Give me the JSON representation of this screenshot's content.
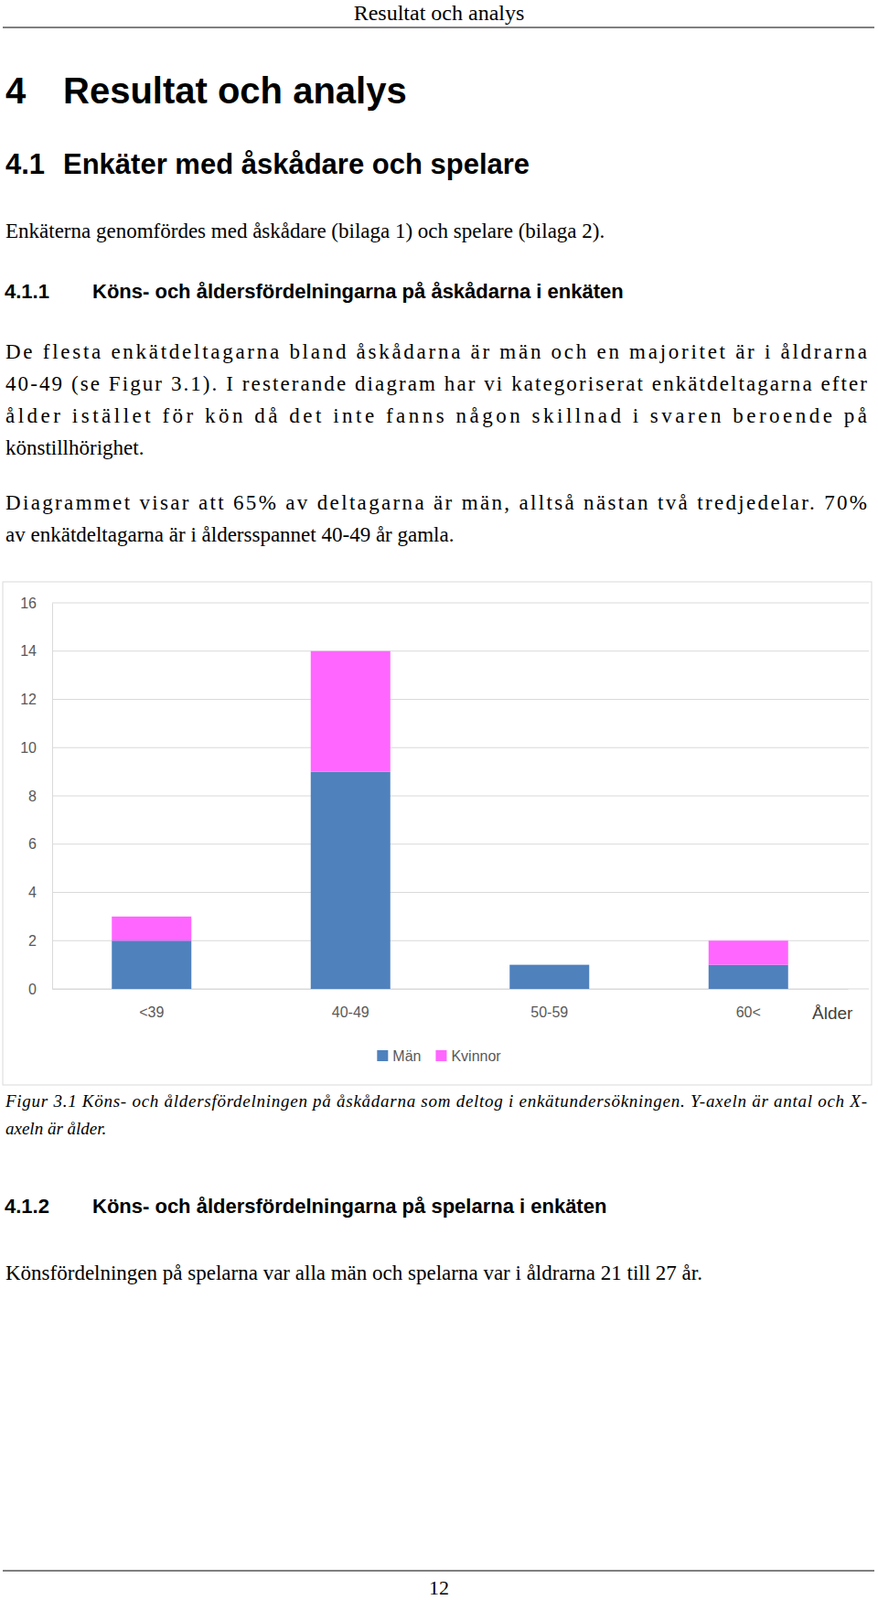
{
  "document": {
    "running_head": "Resultat och analys",
    "chapter": {
      "number": "4",
      "title": "Resultat och analys"
    },
    "section": {
      "number": "4.1",
      "title": "Enkäter med åskådare och spelare",
      "paragraph": [
        "Enkäterna genomfördes med åskådare (bilaga 1) och spelare (bilaga 2)."
      ]
    },
    "subsections": [
      {
        "number": "4.1.1",
        "title": "Köns- och åldersfördelningarna på åskådarna i enkäten",
        "paragraphs": [
          [
            "De flesta enkätdeltagarna bland åskådarna är män och en majoritet är i åldrarna",
            "40-49 (se Figur 3.1). I resterande diagram har vi kategoriserat enkätdeltagarna efter",
            "ålder istället för kön då det inte fanns någon skillnad i svaren beroende på",
            "könstillhörighet."
          ],
          [
            "Diagrammet visar att 65% av deltagarna är män, alltså nästan två tredjedelar. 70%",
            "av enkätdeltagarna är i åldersspannet 40-49 år gamla."
          ]
        ]
      },
      {
        "number": "4.1.2",
        "title": "Köns- och åldersfördelningarna på spelarna i enkäten",
        "paragraphs": [
          [
            "Könsfördelningen på spelarna var alla män och spelarna var i åldrarna 21 till 27 år."
          ]
        ]
      }
    ],
    "figure_caption": [
      "Figur 3.1 Köns- och åldersfördelningen på åskådarna som deltog i enkätundersökningen. Y-axeln är antal och X-",
      "axeln är ålder."
    ],
    "page_number": "12"
  },
  "chart_data": {
    "type": "bar",
    "stacked": true,
    "categories": [
      "<39",
      "40-49",
      "50-59",
      "60<"
    ],
    "series": [
      {
        "name": "Män",
        "color": "#4f81bd",
        "values": [
          2,
          9,
          1,
          1
        ]
      },
      {
        "name": "Kvinnor",
        "color": "#ff66ff",
        "values": [
          1,
          5,
          0,
          1
        ]
      }
    ],
    "x_label": "Ålder",
    "ylim": [
      0,
      16
    ],
    "yticks": [
      0,
      2,
      4,
      6,
      8,
      10,
      12,
      14,
      16
    ],
    "grid": true,
    "legend": "bottom"
  }
}
